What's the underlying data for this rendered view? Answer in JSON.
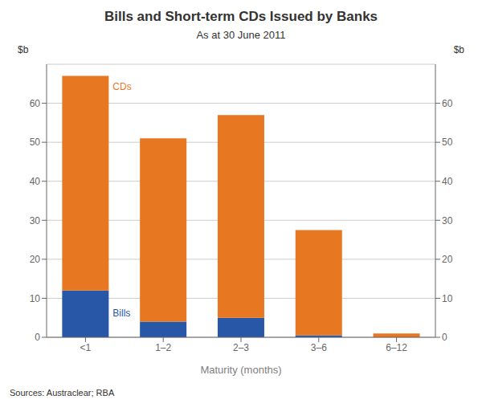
{
  "chart_data": {
    "type": "bar",
    "stacked": true,
    "title": "Bills and Short-term CDs Issued by Banks",
    "subtitle": "As at 30 June 2011",
    "xlabel": "Maturity (months)",
    "ylabel": "$b",
    "y2label": "$b",
    "source": "Sources: Austraclear; RBA",
    "categories": [
      "<1",
      "1–2",
      "2–3",
      "3–6",
      "6–12"
    ],
    "series": [
      {
        "name": "Bills",
        "color": "#2757a6",
        "values": [
          12,
          4,
          5,
          0.5,
          0
        ]
      },
      {
        "name": "CDs",
        "color": "#e87722",
        "values": [
          55,
          47,
          52,
          27,
          1
        ]
      }
    ],
    "ylim": [
      0,
      70
    ],
    "yticks": [
      0,
      10,
      20,
      30,
      40,
      50,
      60
    ],
    "y2lim": [
      0,
      70
    ],
    "y2ticks": [
      0,
      10,
      20,
      30,
      40,
      50,
      60
    ],
    "grid": true
  }
}
